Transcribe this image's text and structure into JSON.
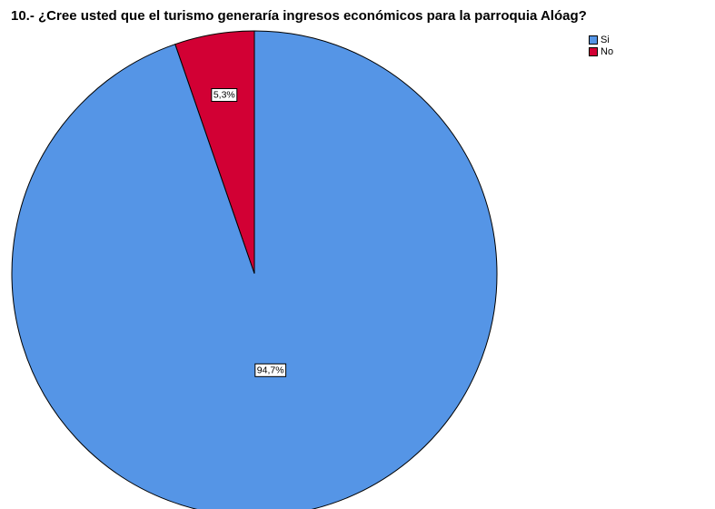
{
  "chart_data": {
    "type": "pie",
    "title": "10.- ¿Cree usted que el turismo generaría ingresos económicos para la parroquia Alóag?",
    "slices": [
      {
        "name": "No",
        "value": 5.3,
        "label": "5,3%",
        "color": "#d20034"
      },
      {
        "name": "Si",
        "value": 94.7,
        "label": "94,7%",
        "color": "#5595e6"
      }
    ],
    "legend": [
      {
        "name": "Si",
        "color": "#5595e6"
      },
      {
        "name": "No",
        "color": "#d20034"
      }
    ],
    "legend_position": "top-right"
  }
}
